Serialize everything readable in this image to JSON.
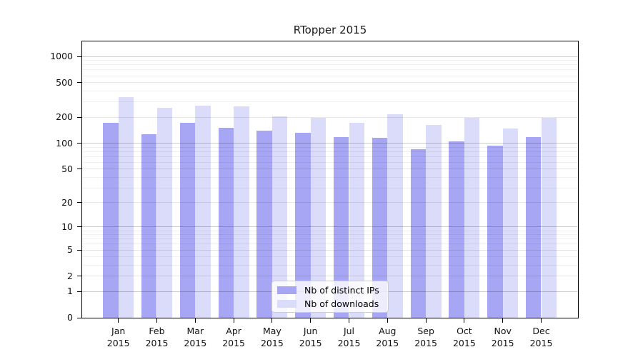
{
  "title": "RTopper 2015",
  "chart_data": {
    "type": "bar",
    "title": "RTopper 2015",
    "categories": [
      "Jan 2015",
      "Feb 2015",
      "Mar 2015",
      "Apr 2015",
      "May 2015",
      "Jun 2015",
      "Jul 2015",
      "Aug 2015",
      "Sep 2015",
      "Oct 2015",
      "Nov 2015",
      "Dec 2015"
    ],
    "series": [
      {
        "name": "Nb of distinct IPs",
        "values": [
          172,
          128,
          173,
          151,
          140,
          132,
          117,
          115,
          85,
          104,
          93,
          117
        ]
      },
      {
        "name": "Nb of downloads",
        "values": [
          342,
          254,
          270,
          268,
          206,
          198,
          171,
          214,
          163,
          198,
          147,
          198
        ]
      }
    ],
    "yscale": "log1p",
    "yticks": [
      0,
      1,
      2,
      5,
      10,
      20,
      50,
      100,
      200,
      500,
      1000
    ],
    "ylim": [
      0,
      1450
    ],
    "grid": true,
    "legend_position": "inside-bottom-center",
    "colors": {
      "distinct_ips": "#a6a6f4",
      "downloads": "#dbdbfa"
    }
  },
  "legend": {
    "items": [
      {
        "label": "Nb of distinct IPs"
      },
      {
        "label": "Nb of downloads"
      }
    ]
  }
}
